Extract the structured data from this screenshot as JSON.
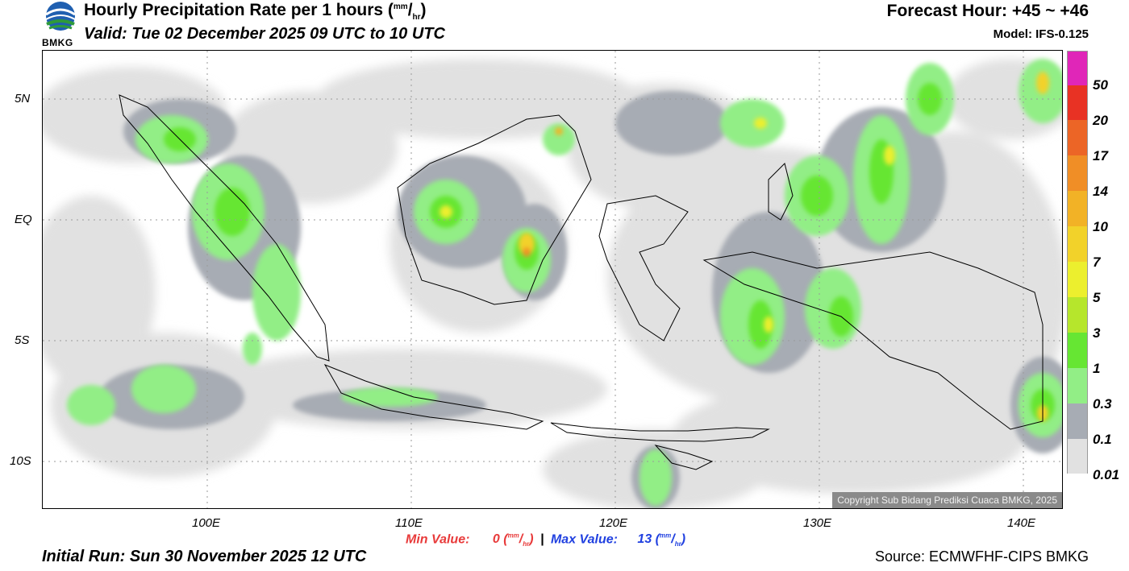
{
  "header": {
    "logo_text": "BMKG",
    "title_main": "Hourly Precipitation Rate per 1 hours (",
    "title_unit_sup": "mm",
    "title_unit_sub": "hr",
    "title_close": ")",
    "valid": "Valid: Tue 02 December 2025 09 UTC to 10 UTC",
    "forecast_hour": "Forecast Hour: +45 ~ +46",
    "model": "Model: IFS-0.125"
  },
  "map": {
    "lat_labels": [
      "5N",
      "EQ",
      "5S",
      "10S"
    ],
    "lon_labels": [
      "100E",
      "110E",
      "120E",
      "130E",
      "140E"
    ],
    "copyright": "Copyright Sub Bidang Prediksi Cuaca BMKG, 2025"
  },
  "colorbar": {
    "labels": [
      "50",
      "20",
      "17",
      "14",
      "10",
      "7",
      "5",
      "3",
      "1",
      "0.3",
      "0.1",
      "0.01"
    ],
    "colors": [
      "#e026b8",
      "#e83224",
      "#ec6526",
      "#f08e26",
      "#f2b226",
      "#f2d22a",
      "#ecef2e",
      "#b6e62c",
      "#66e633",
      "#92ee86",
      "#a7acb4",
      "#e1e1e1"
    ]
  },
  "footer": {
    "min_label": "Min Value:",
    "min_value": "0",
    "max_label": "Max Value:",
    "max_value": "13",
    "unit_sup": "mm",
    "unit_sub": "hr",
    "separator": "|",
    "initial_run": "Initial Run: Sun 30 November 2025 12 UTC",
    "source": "Source: ECMWFHF-CIPS BMKG"
  }
}
